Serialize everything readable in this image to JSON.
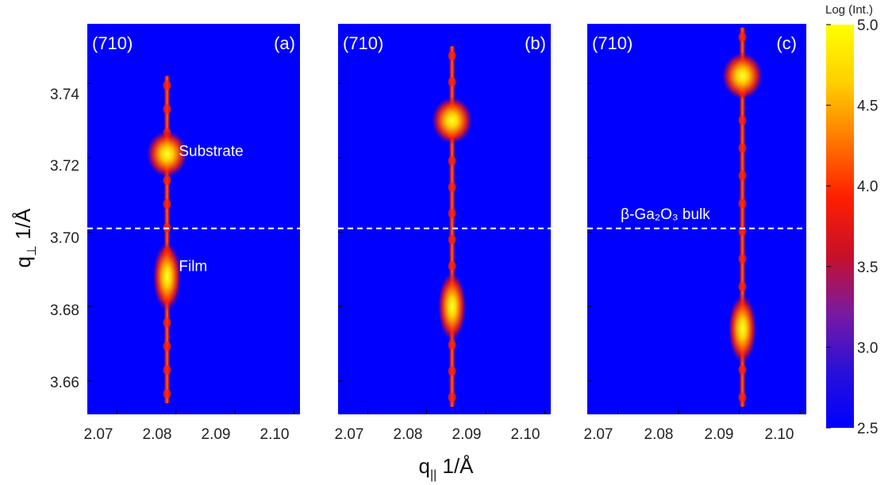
{
  "chart_data": [
    {
      "type": "heatmap",
      "panel_label": "(a)",
      "reflection": "(710)",
      "xlim": [
        2.065,
        2.101
      ],
      "ylim": [
        3.651,
        3.756
      ],
      "x_ticks": [
        "2.07",
        "2.08",
        "2.09",
        "2.10"
      ],
      "y_ticks": [
        "3.66",
        "3.68",
        "3.70",
        "3.72",
        "3.74"
      ],
      "peak_q_parallel": 2.0785,
      "substrate_peak_q_perp": 3.721,
      "film_peak_q_perp": 3.688,
      "streak_range_q_perp": [
        3.654,
        3.742
      ],
      "reference_line_q_perp": 3.701,
      "annotations": [
        {
          "text": "Substrate",
          "q_parallel": 2.0805,
          "q_perp": 3.7205
        },
        {
          "text": "Film",
          "q_parallel": 2.0805,
          "q_perp": 3.6895
        }
      ]
    },
    {
      "type": "heatmap",
      "panel_label": "(b)",
      "reflection": "(710)",
      "xlim": [
        2.065,
        2.101
      ],
      "ylim": [
        3.651,
        3.756
      ],
      "x_ticks": [
        "2.07",
        "2.08",
        "2.09",
        "2.10"
      ],
      "y_ticks": [
        "3.66",
        "3.68",
        "3.70",
        "3.72",
        "3.74"
      ],
      "peak_q_parallel": 2.0843,
      "substrate_peak_q_perp": 3.73,
      "film_peak_q_perp": 3.68,
      "streak_range_q_perp": [
        3.653,
        3.75
      ],
      "reference_line_q_perp": 3.701,
      "annotations": []
    },
    {
      "type": "heatmap",
      "panel_label": "(c)",
      "reflection": "(710)",
      "xlim": [
        2.065,
        2.101
      ],
      "ylim": [
        3.651,
        3.756
      ],
      "x_ticks": [
        "2.07",
        "2.08",
        "2.09",
        "2.10"
      ],
      "y_ticks": [
        "3.66",
        "3.68",
        "3.70",
        "3.72",
        "3.74"
      ],
      "peak_q_parallel": 2.0905,
      "substrate_peak_q_perp": 3.742,
      "film_peak_q_perp": 3.674,
      "streak_range_q_perp": [
        3.653,
        3.755
      ],
      "reference_line_q_perp": 3.701,
      "annotations": [
        {
          "text": "β-Ga₂O₃ bulk",
          "q_parallel": 2.0705,
          "q_perp": 3.7035
        }
      ]
    }
  ],
  "axes": {
    "xlabel_main": "q",
    "xlabel_sub": "||",
    "xlabel_unit": " 1/Å",
    "ylabel_main": "q",
    "ylabel_sub": "⊥",
    "ylabel_unit": " 1/Å"
  },
  "colorbar": {
    "title": "Log (Int.)",
    "min": 2.5,
    "max": 5.0,
    "ticks": [
      "2.5",
      "3.0",
      "3.5",
      "4.0",
      "4.5",
      "5.0"
    ],
    "colors": [
      "#0000ff",
      "#2a10d8",
      "#7a1aa0",
      "#c81028",
      "#ff1e00",
      "#ff7800",
      "#ffd000",
      "#ffff00"
    ]
  },
  "colors": {
    "background_low": "#0000ff",
    "reference_line": "#ffffff"
  }
}
